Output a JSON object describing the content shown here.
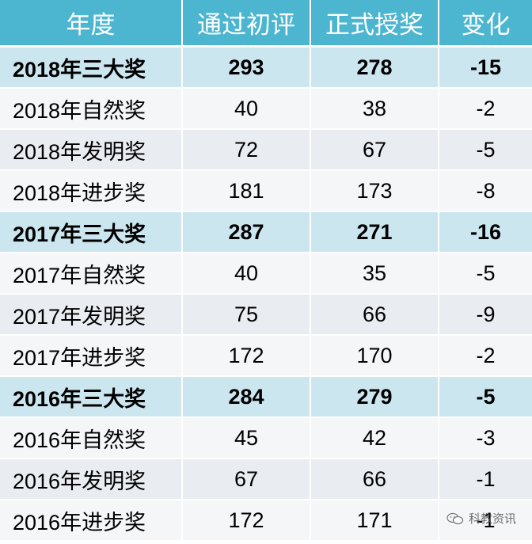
{
  "chart_data": {
    "type": "table",
    "columns": [
      "年度",
      "通过初评",
      "正式授奖",
      "变化"
    ],
    "rows": [
      {
        "label": "2018年三大奖",
        "passed": "293",
        "awarded": "278",
        "change": "-15",
        "summary": true
      },
      {
        "label": "2018年自然奖",
        "passed": "40",
        "awarded": "38",
        "change": "-2",
        "summary": false
      },
      {
        "label": "2018年发明奖",
        "passed": "72",
        "awarded": "67",
        "change": "-5",
        "summary": false
      },
      {
        "label": "2018年进步奖",
        "passed": "181",
        "awarded": "173",
        "change": "-8",
        "summary": false
      },
      {
        "label": "2017年三大奖",
        "passed": "287",
        "awarded": "271",
        "change": "-16",
        "summary": true
      },
      {
        "label": "2017年自然奖",
        "passed": "40",
        "awarded": "35",
        "change": "-5",
        "summary": false
      },
      {
        "label": "2017年发明奖",
        "passed": "75",
        "awarded": "66",
        "change": "-9",
        "summary": false
      },
      {
        "label": "2017年进步奖",
        "passed": "172",
        "awarded": "170",
        "change": "-2",
        "summary": false
      },
      {
        "label": "2016年三大奖",
        "passed": "284",
        "awarded": "279",
        "change": "-5",
        "summary": true
      },
      {
        "label": "2016年自然奖",
        "passed": "45",
        "awarded": "42",
        "change": "-3",
        "summary": false
      },
      {
        "label": "2016年发明奖",
        "passed": "67",
        "awarded": "66",
        "change": "-1",
        "summary": false
      },
      {
        "label": "2016年进步奖",
        "passed": "172",
        "awarded": "171",
        "change": "-1",
        "summary": false
      }
    ]
  },
  "watermark": {
    "text": "科教资讯",
    "icon": "wechat-icon"
  },
  "colors": {
    "header_bg": "#4cb5d0",
    "summary_bg": "#cce6f0",
    "row_bg_a": "#e9ecf0",
    "row_bg_b": "#f5f6f8"
  }
}
